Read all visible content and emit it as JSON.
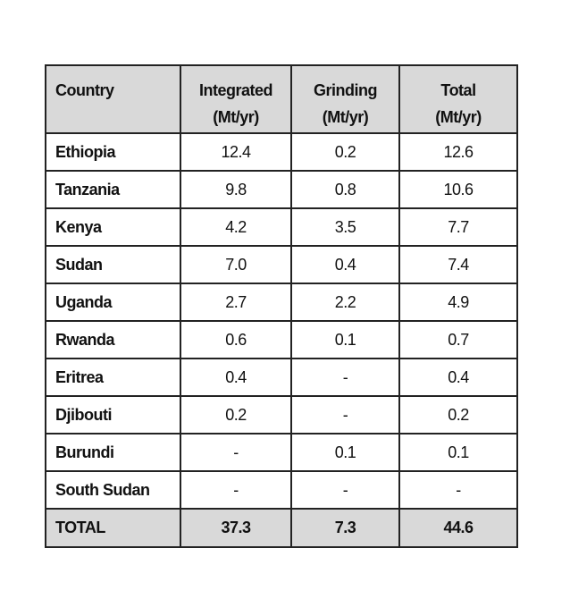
{
  "table": {
    "headers": {
      "country": "Country",
      "integrated": [
        "Integrated",
        "(Mt/yr)"
      ],
      "grinding": [
        "Grinding",
        "(Mt/yr)"
      ],
      "total": [
        "Total",
        "(Mt/yr)"
      ]
    },
    "rows": [
      {
        "country": "Ethiopia",
        "integrated": "12.4",
        "grinding": "0.2",
        "total": "12.6"
      },
      {
        "country": "Tanzania",
        "integrated": "9.8",
        "grinding": "0.8",
        "total": "10.6"
      },
      {
        "country": "Kenya",
        "integrated": "4.2",
        "grinding": "3.5",
        "total": "7.7"
      },
      {
        "country": "Sudan",
        "integrated": "7.0",
        "grinding": "0.4",
        "total": "7.4"
      },
      {
        "country": "Uganda",
        "integrated": "2.7",
        "grinding": "2.2",
        "total": "4.9"
      },
      {
        "country": "Rwanda",
        "integrated": "0.6",
        "grinding": "0.1",
        "total": "0.7"
      },
      {
        "country": "Eritrea",
        "integrated": "0.4",
        "grinding": "-",
        "total": "0.4"
      },
      {
        "country": "Djibouti",
        "integrated": "0.2",
        "grinding": "-",
        "total": "0.2"
      },
      {
        "country": "Burundi",
        "integrated": "-",
        "grinding": "0.1",
        "total": "0.1"
      },
      {
        "country": "South Sudan",
        "integrated": "-",
        "grinding": "-",
        "total": "-"
      }
    ],
    "total_row": {
      "country": "TOTAL",
      "integrated": "37.3",
      "grinding": "7.3",
      "total": "44.6"
    }
  }
}
